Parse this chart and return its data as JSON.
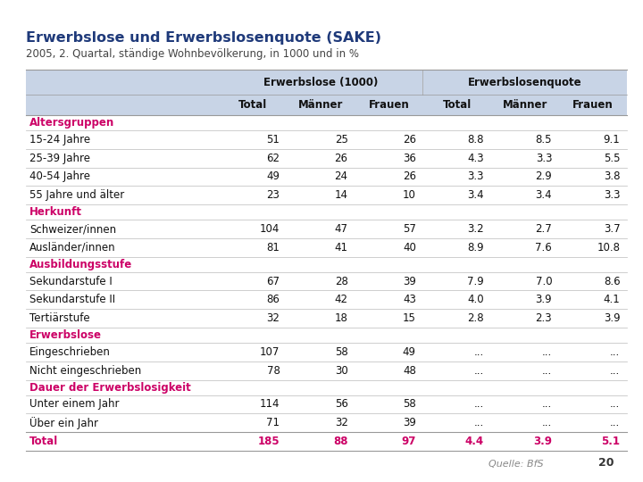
{
  "title": "Erwerbslose und Erwerbslosenquote (SAKE)",
  "subtitle": "2005, 2. Quartal, ständige Wohnbevölkerung, in 1000 und in %",
  "title_color": "#1F3A7A",
  "subtitle_color": "#444444",
  "header1": "Erwerbslose (1000)",
  "header2": "Erwerbslosenquote",
  "col_headers": [
    "Total",
    "Männer",
    "Frauen",
    "Total",
    "Männer",
    "Frauen"
  ],
  "section_color": "#CC0066",
  "total_color": "#CC0066",
  "header_bg": "#C8D4E6",
  "row_bg_white": "#FFFFFF",
  "sections": [
    {
      "label": "Altersgruppen",
      "rows": [
        {
          "label": "15-24 Jahre",
          "vals": [
            "51",
            "25",
            "26",
            "8.8",
            "8.5",
            "9.1"
          ]
        },
        {
          "label": "25-39 Jahre",
          "vals": [
            "62",
            "26",
            "36",
            "4.3",
            "3.3",
            "5.5"
          ]
        },
        {
          "label": "40-54 Jahre",
          "vals": [
            "49",
            "24",
            "26",
            "3.3",
            "2.9",
            "3.8"
          ]
        },
        {
          "label": "55 Jahre und älter",
          "vals": [
            "23",
            "14",
            "10",
            "3.4",
            "3.4",
            "3.3"
          ]
        }
      ]
    },
    {
      "label": "Herkunft",
      "rows": [
        {
          "label": "Schweizer/innen",
          "vals": [
            "104",
            "47",
            "57",
            "3.2",
            "2.7",
            "3.7"
          ]
        },
        {
          "label": "Ausländer/innen",
          "vals": [
            "81",
            "41",
            "40",
            "8.9",
            "7.6",
            "10.8"
          ]
        }
      ]
    },
    {
      "label": "Ausbildungsstufe",
      "rows": [
        {
          "label": "Sekundarstufe I",
          "vals": [
            "67",
            "28",
            "39",
            "7.9",
            "7.0",
            "8.6"
          ]
        },
        {
          "label": "Sekundarstufe II",
          "vals": [
            "86",
            "42",
            "43",
            "4.0",
            "3.9",
            "4.1"
          ]
        },
        {
          "label": "Tertiärstufe",
          "vals": [
            "32",
            "18",
            "15",
            "2.8",
            "2.3",
            "3.9"
          ]
        }
      ]
    },
    {
      "label": "Erwerbslose",
      "rows": [
        {
          "label": "Eingeschrieben",
          "vals": [
            "107",
            "58",
            "49",
            "...",
            "...",
            "..."
          ]
        },
        {
          "label": "Nicht eingeschrieben",
          "vals": [
            "78",
            "30",
            "48",
            "...",
            "...",
            "..."
          ]
        }
      ]
    },
    {
      "label": "Dauer der Erwerbslosigkeit",
      "rows": [
        {
          "label": "Unter einem Jahr",
          "vals": [
            "114",
            "56",
            "58",
            "...",
            "...",
            "..."
          ]
        },
        {
          "label": "Über ein Jahr",
          "vals": [
            "71",
            "32",
            "39",
            "...",
            "...",
            "..."
          ]
        }
      ]
    }
  ],
  "total_row": {
    "label": "Total",
    "vals": [
      "185",
      "88",
      "97",
      "4.4",
      "3.9",
      "5.1"
    ]
  },
  "source": "Quelle: BfS",
  "page": "20",
  "background": "#FFFFFF",
  "line_color_heavy": "#999999",
  "line_color_light": "#BBBBBB"
}
